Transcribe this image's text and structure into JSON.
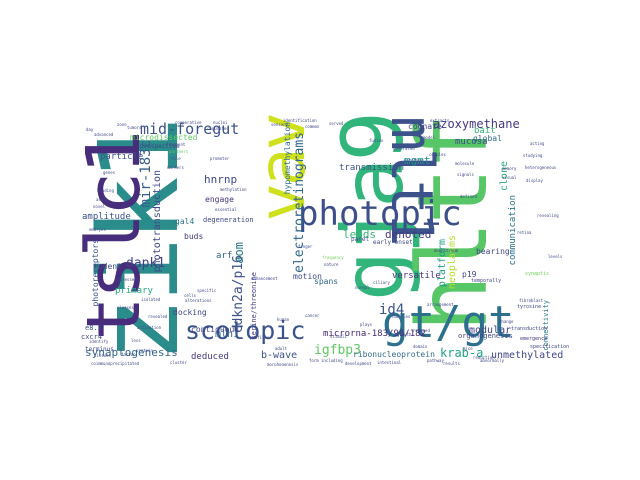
{
  "words": {
    "zik1": "zik1",
    "gja9": "gja9",
    "hltf": "hltf",
    "tslc1": "tslc1",
    "mlt1": "mlt1",
    "vav": "vav",
    "photopic": "photopic",
    "gt_gt": "gt/gt",
    "scotopic": "scotopic",
    "electroretinograms": "electroretinograms",
    "mid_foregut": "mid-foregut",
    "azoxymethane": "azoxymethane",
    "igfbp3": "igfbp3",
    "dapk1": "dapk1",
    "mir_183c": "mir-183c",
    "cdkn2a_p16": "cdkn2a/p16",
    "krab_a": "krab-a",
    "synaptogenesis": "synaptogenesis",
    "aom": "aom",
    "hnrnp": "hnrnp",
    "mgmt": "mgmt",
    "id4": "id4",
    "denoted": "denoted",
    "lends": "lends",
    "modular": "modular",
    "mlh1": "mlh1",
    "b_wave": "b-wave",
    "phototransduction": "phototransduction",
    "microrna": "microrna-183/96/182",
    "ribonucleoprotein": "ribonucleoprotein",
    "unmethylated": "unmethylated",
    "neoplasms": "neoplasms",
    "platform": "platform",
    "transmission": "transmission",
    "mucosa": "mucosa",
    "versatile": "versatile",
    "cognate": "cognate",
    "particle": "particle",
    "amplitude": "amplitude",
    "rodent": "rodent",
    "primary": "primary",
    "docking": "docking",
    "contiguous": "contiguous",
    "deduced": "deduced",
    "engage": "engage",
    "arf": "arf",
    "spans": "spans",
    "bearing": "bearing",
    "global": "global",
    "clone": "clone",
    "bait": "bait",
    "communication": "communication",
    "organogenesis": "organogenesis",
    "p19": "p19",
    "photoreceptors": "photoreceptors",
    "microdissected": "microdissected",
    "gal4": "gal4",
    "buds": "buds",
    "hypomethylation": "hypomethylation",
    "early_onset": "early-onset",
    "degeneration": "degeneration",
    "serine_threonine": "serine/threonine",
    "motion": "motion",
    "panel": "panel",
    "cxcr4": "cxcr4",
    "e8_5": "e8.5",
    "terminus": "terminus",
    "prospective": "prospective",
    "temporally": "temporally",
    "synaptic": "synaptic",
    "connectivity": "connectivity",
    "transduction": "transduction",
    "emergence": "emergence",
    "tyrosine": "tyrosine",
    "retina": "retina",
    "nature": "nature",
    "frequency": "frequency",
    "partners": "partners",
    "mutation": "mutation",
    "molecule": "molecule",
    "heterogeneous": "heterogeneous",
    "visual": "visual",
    "display": "display",
    "studying": "studying",
    "revealing": "revealing",
    "fusion": "fusion",
    "generated": "generated",
    "complex": "complex",
    "signals": "signals",
    "defined": "defined",
    "memory": "memory",
    "specification": "specification",
    "arrangement": "arrangement",
    "change": "change",
    "fibroblast": "fibroblast",
    "families": "families",
    "stimuli": "stimuli",
    "reduced": "reduced",
    "growth": "growth",
    "morphogenesis": "morphogenesis",
    "coimmunoprecipitated": "coimmunoprecipitated",
    "profiles": "profiles",
    "tissues": "tissues",
    "identify": "identify",
    "classes": "classes",
    "activation": "activation",
    "adult": "adult",
    "form": "form",
    "including": "including",
    "cluster": "cluster",
    "nuclei": "nuclei",
    "model": "model",
    "sensory": "sensory",
    "identification": "identification",
    "common": "common",
    "served": "served",
    "appears": "appears",
    "extracts": "extracts",
    "acting": "acting",
    "finger": "finger",
    "regulates": "regulates",
    "promoter": "promoter",
    "methylation": "methylation",
    "essential": "essential",
    "cells": "cells",
    "alterations": "alterations",
    "enhancement": "enhancement",
    "specific": "specific",
    "normal": "normal",
    "ciliary": "ciliary",
    "downstream": "downstream",
    "reduction": "reduction",
    "abnormally": "abnormally",
    "intestinal": "intestinal",
    "development": "development",
    "plays": "plays",
    "cancer": "cancer",
    "human": "human",
    "zone": "zone",
    "day": "day",
    "advanced": "advanced",
    "tumors": "tumors",
    "cooperative": "cooperative",
    "fragment": "fragment",
    "role": "role",
    "markers": "markers",
    "genes": "genes",
    "binding": "binding",
    "assay": "assay",
    "novel": "novel",
    "embryos": "embryos",
    "expressed": "expressed",
    "isolated": "isolated",
    "revealed": "revealed",
    "loss": "loss",
    "factor": "factor",
    "protein": "protein",
    "domain": "domain",
    "pathway": "pathway",
    "results": "results",
    "mice": "mice",
    "levels": "levels"
  }
}
